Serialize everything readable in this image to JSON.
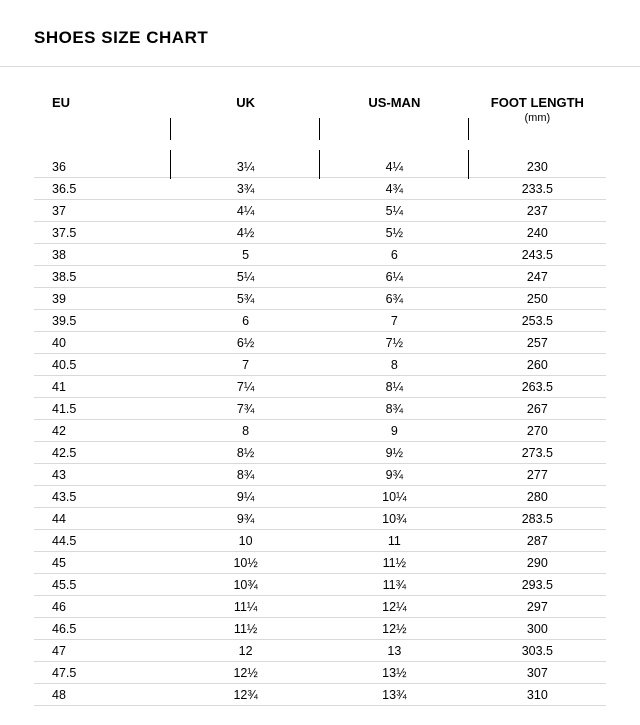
{
  "title": "SHOES SIZE CHART",
  "table": {
    "type": "table",
    "background_color": "#ffffff",
    "grid_color": "#d9d9d9",
    "text_color": "#000000",
    "title_fontsize": 17,
    "header_fontsize": 13,
    "cell_fontsize": 12.5,
    "columns": [
      {
        "label": "EU",
        "sublabel": "",
        "align": "left",
        "width_pct": 24
      },
      {
        "label": "UK",
        "sublabel": "",
        "align": "center",
        "width_pct": 26
      },
      {
        "label": "US-MAN",
        "sublabel": "",
        "align": "center",
        "width_pct": 26
      },
      {
        "label": "FOOT LENGTH",
        "sublabel": "(mm)",
        "align": "center",
        "width_pct": 24
      }
    ],
    "rows": [
      [
        "36",
        "3¼",
        "4¼",
        "230"
      ],
      [
        "36.5",
        "3¾",
        "4¾",
        "233.5"
      ],
      [
        "37",
        "4¼",
        "5¼",
        "237"
      ],
      [
        "37.5",
        "4½",
        "5½",
        "240"
      ],
      [
        "38",
        "5",
        "6",
        "243.5"
      ],
      [
        "38.5",
        "5¼",
        "6¼",
        "247"
      ],
      [
        "39",
        "5¾",
        "6¾",
        "250"
      ],
      [
        "39.5",
        "6",
        "7",
        "253.5"
      ],
      [
        "40",
        "6½",
        "7½",
        "257"
      ],
      [
        "40.5",
        "7",
        "8",
        "260"
      ],
      [
        "41",
        "7¼",
        "8¼",
        "263.5"
      ],
      [
        "41.5",
        "7¾",
        "8¾",
        "267"
      ],
      [
        "42",
        "8",
        "9",
        "270"
      ],
      [
        "42.5",
        "8½",
        "9½",
        "273.5"
      ],
      [
        "43",
        "8¾",
        "9¾",
        "277"
      ],
      [
        "43.5",
        "9¼",
        "10¼",
        "280"
      ],
      [
        "44",
        "9¾",
        "10¾",
        "283.5"
      ],
      [
        "44.5",
        "10",
        "11",
        "287"
      ],
      [
        "45",
        "10½",
        "11½",
        "290"
      ],
      [
        "45.5",
        "10¾",
        "11¾",
        "293.5"
      ],
      [
        "46",
        "11¼",
        "12¼",
        "297"
      ],
      [
        "46.5",
        "11½",
        "12½",
        "300"
      ],
      [
        "47",
        "12",
        "13",
        "303.5"
      ],
      [
        "47.5",
        "12½",
        "13½",
        "307"
      ],
      [
        "48",
        "12¾",
        "13¾",
        "310"
      ]
    ]
  }
}
